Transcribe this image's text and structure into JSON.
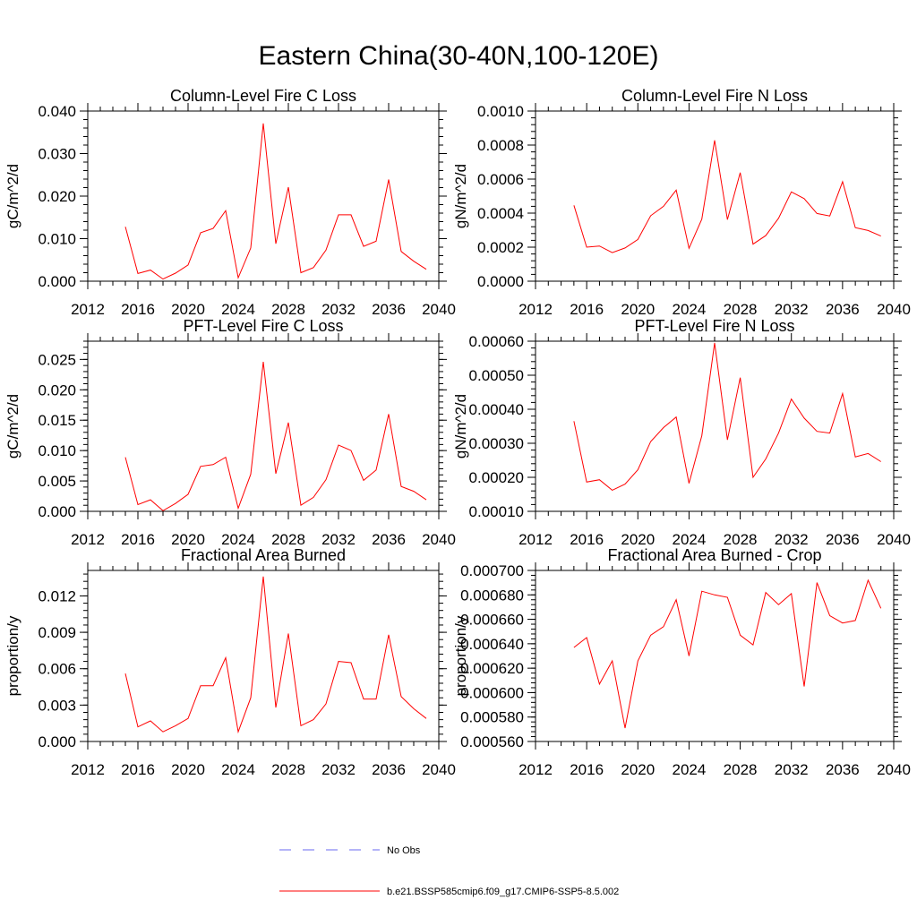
{
  "title": "Eastern China(30-40N,100-120E)",
  "chart_data": [
    {
      "type": "line",
      "title": "Column-Level Fire C Loss",
      "ylabel": "gC/m^2/d",
      "xlim": [
        2012,
        2040
      ],
      "xticks": [
        "2012",
        "2016",
        "2020",
        "2024",
        "2028",
        "2032",
        "2036",
        "2040"
      ],
      "ylim": [
        0,
        0.04
      ],
      "yticks": [
        "0.000",
        "0.010",
        "0.020",
        "0.030",
        "0.040"
      ],
      "x": [
        2015,
        2016,
        2017,
        2018,
        2019,
        2020,
        2021,
        2022,
        2023,
        2024,
        2025,
        2026,
        2027,
        2028,
        2029,
        2030,
        2031,
        2032,
        2033,
        2034,
        2035,
        2036,
        2037,
        2038,
        2039
      ],
      "series": [
        {
          "name": "b.e21.BSSP585cmip6.f09_g17.CMIP6-SSP5-8.5.002",
          "values": [
            0.0128,
            0.0018,
            0.0026,
            0.0005,
            0.0019,
            0.0038,
            0.0114,
            0.0124,
            0.0166,
            0.0008,
            0.0078,
            0.0371,
            0.0088,
            0.0221,
            0.002,
            0.0032,
            0.0073,
            0.0156,
            0.0156,
            0.0082,
            0.0094,
            0.0239,
            0.007,
            0.0047,
            0.0028
          ]
        }
      ]
    },
    {
      "type": "line",
      "title": "Column-Level Fire N Loss",
      "ylabel": "gN/m^2/d",
      "xlim": [
        2012,
        2040
      ],
      "xticks": [
        "2012",
        "2016",
        "2020",
        "2024",
        "2028",
        "2032",
        "2036",
        "2040"
      ],
      "ylim": [
        0,
        0.001
      ],
      "yticks": [
        "0.0000",
        "0.0002",
        "0.0004",
        "0.0006",
        "0.0008",
        "0.0010"
      ],
      "x": [
        2015,
        2016,
        2017,
        2018,
        2019,
        2020,
        2021,
        2022,
        2023,
        2024,
        2025,
        2026,
        2027,
        2028,
        2029,
        2030,
        2031,
        2032,
        2033,
        2034,
        2035,
        2036,
        2037,
        2038,
        2039
      ],
      "series": [
        {
          "name": "b.e21.BSSP585cmip6.f09_g17.CMIP6-SSP5-8.5.002",
          "values": [
            0.000446,
            0.0002,
            0.000207,
            0.000168,
            0.000195,
            0.000245,
            0.000385,
            0.00044,
            0.000535,
            0.000193,
            0.000365,
            0.000828,
            0.000362,
            0.000638,
            0.000218,
            0.000268,
            0.00037,
            0.000525,
            0.000485,
            0.000398,
            0.000383,
            0.000585,
            0.000315,
            0.000298,
            0.000265
          ]
        }
      ]
    },
    {
      "type": "line",
      "title": "PFT-Level Fire C Loss",
      "ylabel": "gC/m^2/d",
      "xlim": [
        2012,
        2040
      ],
      "xticks": [
        "2012",
        "2016",
        "2020",
        "2024",
        "2028",
        "2032",
        "2036",
        "2040"
      ],
      "ylim": [
        0,
        0.028
      ],
      "yticks": [
        "0.000",
        "0.005",
        "0.010",
        "0.015",
        "0.020",
        "0.025"
      ],
      "x": [
        2015,
        2016,
        2017,
        2018,
        2019,
        2020,
        2021,
        2022,
        2023,
        2024,
        2025,
        2026,
        2027,
        2028,
        2029,
        2030,
        2031,
        2032,
        2033,
        2034,
        2035,
        2036,
        2037,
        2038,
        2039
      ],
      "series": [
        {
          "name": "b.e21.BSSP585cmip6.f09_g17.CMIP6-SSP5-8.5.002",
          "values": [
            0.0089,
            0.0011,
            0.0019,
            0.0001,
            0.0013,
            0.0028,
            0.0074,
            0.0077,
            0.0089,
            0.0005,
            0.0061,
            0.0246,
            0.0062,
            0.0146,
            0.001,
            0.0023,
            0.0052,
            0.0109,
            0.01,
            0.0051,
            0.0068,
            0.016,
            0.0041,
            0.0033,
            0.0019
          ]
        }
      ]
    },
    {
      "type": "line",
      "title": "PFT-Level Fire N Loss",
      "ylabel": "gN/m^2/d",
      "xlim": [
        2012,
        2040
      ],
      "xticks": [
        "2012",
        "2016",
        "2020",
        "2024",
        "2028",
        "2032",
        "2036",
        "2040"
      ],
      "ylim": [
        0.0001,
        0.0006
      ],
      "yticks": [
        "0.00010",
        "0.00020",
        "0.00030",
        "0.00040",
        "0.00050",
        "0.00060"
      ],
      "x": [
        2015,
        2016,
        2017,
        2018,
        2019,
        2020,
        2021,
        2022,
        2023,
        2024,
        2025,
        2026,
        2027,
        2028,
        2029,
        2030,
        2031,
        2032,
        2033,
        2034,
        2035,
        2036,
        2037,
        2038,
        2039
      ],
      "series": [
        {
          "name": "b.e21.BSSP585cmip6.f09_g17.CMIP6-SSP5-8.5.002",
          "values": [
            0.000365,
            0.000186,
            0.000193,
            0.000162,
            0.00018,
            0.000222,
            0.000305,
            0.000346,
            0.000377,
            0.000182,
            0.000322,
            0.000595,
            0.00031,
            0.000493,
            0.0002,
            0.000254,
            0.00033,
            0.00043,
            0.000374,
            0.000335,
            0.00033,
            0.000446,
            0.00026,
            0.00027,
            0.000246
          ]
        }
      ]
    },
    {
      "type": "line",
      "title": "Fractional Area Burned",
      "ylabel": "proportion/y",
      "xlim": [
        2012,
        2040
      ],
      "xticks": [
        "2012",
        "2016",
        "2020",
        "2024",
        "2028",
        "2032",
        "2036",
        "2040"
      ],
      "ylim": [
        0,
        0.0141
      ],
      "yticks": [
        "0.000",
        "0.003",
        "0.006",
        "0.009",
        "0.012"
      ],
      "ytick_values": [
        0,
        0.003,
        0.006,
        0.009,
        0.012
      ],
      "x": [
        2015,
        2016,
        2017,
        2018,
        2019,
        2020,
        2021,
        2022,
        2023,
        2024,
        2025,
        2026,
        2027,
        2028,
        2029,
        2030,
        2031,
        2032,
        2033,
        2034,
        2035,
        2036,
        2037,
        2038,
        2039
      ],
      "series": [
        {
          "name": "b.e21.BSSP585cmip6.f09_g17.CMIP6-SSP5-8.5.002",
          "values": [
            0.0056,
            0.0012,
            0.0017,
            0.0008,
            0.0013,
            0.0019,
            0.0046,
            0.0046,
            0.0069,
            0.0008,
            0.0036,
            0.0136,
            0.0028,
            0.0089,
            0.0013,
            0.0018,
            0.0031,
            0.0066,
            0.0065,
            0.0035,
            0.0035,
            0.0088,
            0.0037,
            0.0027,
            0.0019
          ]
        }
      ]
    },
    {
      "type": "line",
      "title": "Fractional Area Burned - Crop",
      "ylabel": "proportion/y",
      "xlim": [
        2012,
        2040
      ],
      "xticks": [
        "2012",
        "2016",
        "2020",
        "2024",
        "2028",
        "2032",
        "2036",
        "2040"
      ],
      "ylim": [
        0.00056,
        0.0007
      ],
      "yticks": [
        "0.000560",
        "0.000580",
        "0.000600",
        "0.000620",
        "0.000640",
        "0.000660",
        "0.000680",
        "0.000700"
      ],
      "x": [
        2015,
        2016,
        2017,
        2018,
        2019,
        2020,
        2021,
        2022,
        2023,
        2024,
        2025,
        2026,
        2027,
        2028,
        2029,
        2030,
        2031,
        2032,
        2033,
        2034,
        2035,
        2036,
        2037,
        2038,
        2039
      ],
      "series": [
        {
          "name": "b.e21.BSSP585cmip6.f09_g17.CMIP6-SSP5-8.5.002",
          "values": [
            0.000637,
            0.000645,
            0.000607,
            0.000626,
            0.000571,
            0.000626,
            0.000647,
            0.000654,
            0.000676,
            0.00063,
            0.000683,
            0.00068,
            0.000678,
            0.000647,
            0.000639,
            0.000682,
            0.000672,
            0.000681,
            0.000605,
            0.00069,
            0.000663,
            0.000657,
            0.000659,
            0.000692,
            0.000669
          ]
        }
      ]
    }
  ],
  "legend": [
    {
      "label": "No Obs",
      "color": "#6a6af0",
      "dash": "dashed"
    },
    {
      "label": "b.e21.BSSP585cmip6.f09_g17.CMIP6-SSP5-8.5.002",
      "color": "#ff0000",
      "dash": "solid"
    }
  ],
  "line_color": "#ff0000"
}
